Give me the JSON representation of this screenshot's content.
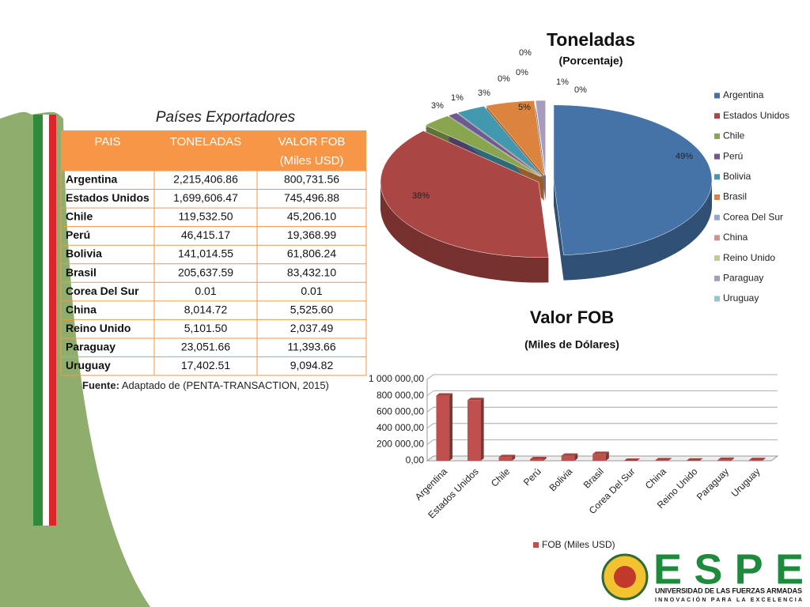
{
  "table": {
    "title": "Países Exportadores",
    "headers": [
      "PAIS",
      "TONELADAS",
      "VALOR FOB"
    ],
    "header_sub": "(Miles USD)",
    "rows": [
      [
        "Argentina",
        "2,215,406.86",
        "800,731.56"
      ],
      [
        "Estados Unidos",
        "1,699,606.47",
        "745,496.88"
      ],
      [
        "Chile",
        "119,532.50",
        "45,206.10"
      ],
      [
        "Perú",
        "46,415.17",
        "19,368.99"
      ],
      [
        "Bolivia",
        "141,014.55",
        "61,806.24"
      ],
      [
        "Brasil",
        "205,637.59",
        "83,432.10"
      ],
      [
        "Corea Del Sur",
        "0.01",
        "0.01"
      ],
      [
        "China",
        "8,014.72",
        "5,525.60"
      ],
      [
        "Reino Unido",
        "5,101.50",
        "2,037.49"
      ],
      [
        "Paraguay",
        "23,051.66",
        "11,393.66"
      ],
      [
        "Uruguay",
        "17,402.51",
        "9,094.82"
      ]
    ],
    "source_label": "Fuente:",
    "source": "Adaptado de (PENTA-TRANSACTION, 2015)"
  },
  "chart_data": [
    {
      "type": "pie",
      "title": "Toneladas",
      "subtitle": "(Porcentaje)",
      "categories": [
        "Argentina",
        "Estados Unidos",
        "Chile",
        "Perú",
        "Bolivia",
        "Brasil",
        "Corea Del Sur",
        "China",
        "Reino Unido",
        "Paraguay",
        "Uruguay"
      ],
      "values": [
        49,
        38,
        3,
        1,
        3,
        5,
        0,
        0,
        0,
        1,
        0
      ],
      "value_labels": [
        "49%",
        "38%",
        "3%",
        "1%",
        "3%",
        "5%",
        "0%",
        "0%",
        "0%",
        "1%",
        "0%"
      ],
      "colors": [
        "#4572a7",
        "#aa4643",
        "#89a54e",
        "#71588f",
        "#4198af",
        "#db843d",
        "#93a9cf",
        "#d19392",
        "#b9cd96",
        "#a99bbd",
        "#92c5d5"
      ],
      "legend": "right"
    },
    {
      "type": "bar",
      "title": "Valor FOB",
      "subtitle": "(Miles de Dólares)",
      "categories": [
        "Argentina",
        "Estados Unidos",
        "Chile",
        "Perú",
        "Bolivia",
        "Brasil",
        "Corea Del Sur",
        "China",
        "Reino Unido",
        "Paraguay",
        "Uruguay"
      ],
      "series": [
        {
          "name": "FOB (Miles USD)",
          "color": "#c0504d",
          "values": [
            800731.56,
            745496.88,
            45206.1,
            19368.99,
            61806.24,
            83432.1,
            0.01,
            5525.6,
            2037.49,
            11393.66,
            9094.82
          ]
        }
      ],
      "ylim": [
        0,
        1000000
      ],
      "yticks": [
        {
          "value": 0,
          "label": "0,00"
        },
        {
          "value": 200000,
          "label": "200 000,00"
        },
        {
          "value": 400000,
          "label": "400 000,00"
        },
        {
          "value": 600000,
          "label": "600 000,00"
        },
        {
          "value": 800000,
          "label": "800 000,00"
        },
        {
          "value": 1000000,
          "label": "1 000 000,00"
        }
      ],
      "grid": true,
      "legend": "bottom"
    }
  ],
  "logo": {
    "name": "ESPE",
    "line1": "UNIVERSIDAD DE LAS FUERZAS ARMADAS",
    "line2": "INNOVACIÓN PARA LA EXCELENCIA"
  }
}
